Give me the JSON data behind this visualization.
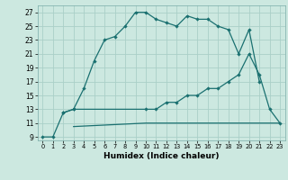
{
  "xlabel": "Humidex (Indice chaleur)",
  "background_color": "#cce8e0",
  "grid_color": "#aacfc8",
  "line_color": "#1a7070",
  "xlim": [
    -0.5,
    23.5
  ],
  "ylim": [
    8.5,
    28
  ],
  "xticks": [
    0,
    1,
    2,
    3,
    4,
    5,
    6,
    7,
    8,
    9,
    10,
    11,
    12,
    13,
    14,
    15,
    16,
    17,
    18,
    19,
    20,
    21,
    22,
    23
  ],
  "yticks": [
    9,
    11,
    13,
    15,
    17,
    19,
    21,
    23,
    25,
    27
  ],
  "line1_x": [
    0,
    1,
    2,
    3,
    4,
    5,
    6,
    7,
    8,
    9,
    10,
    11,
    12,
    13,
    14,
    15,
    16,
    17,
    18,
    19,
    20,
    21
  ],
  "line1_y": [
    9,
    9,
    12.5,
    13,
    16,
    20,
    23,
    23.5,
    25,
    27,
    27,
    26,
    25.5,
    25,
    26.5,
    26,
    26,
    25,
    24.5,
    21,
    24.5,
    17
  ],
  "line2_x": [
    2,
    3,
    10,
    11,
    12,
    13,
    14,
    15,
    16,
    17,
    18,
    19,
    20,
    21,
    22,
    23
  ],
  "line2_y": [
    12.5,
    13,
    13,
    13,
    14,
    14,
    15,
    15,
    16,
    16,
    17,
    18,
    21,
    18,
    13,
    11
  ],
  "line3_x": [
    3,
    10,
    11,
    12,
    13,
    14,
    15,
    16,
    17,
    18,
    22,
    23
  ],
  "line3_y": [
    10.5,
    11,
    11,
    11,
    11,
    11,
    11,
    11,
    11,
    11,
    11,
    11
  ]
}
